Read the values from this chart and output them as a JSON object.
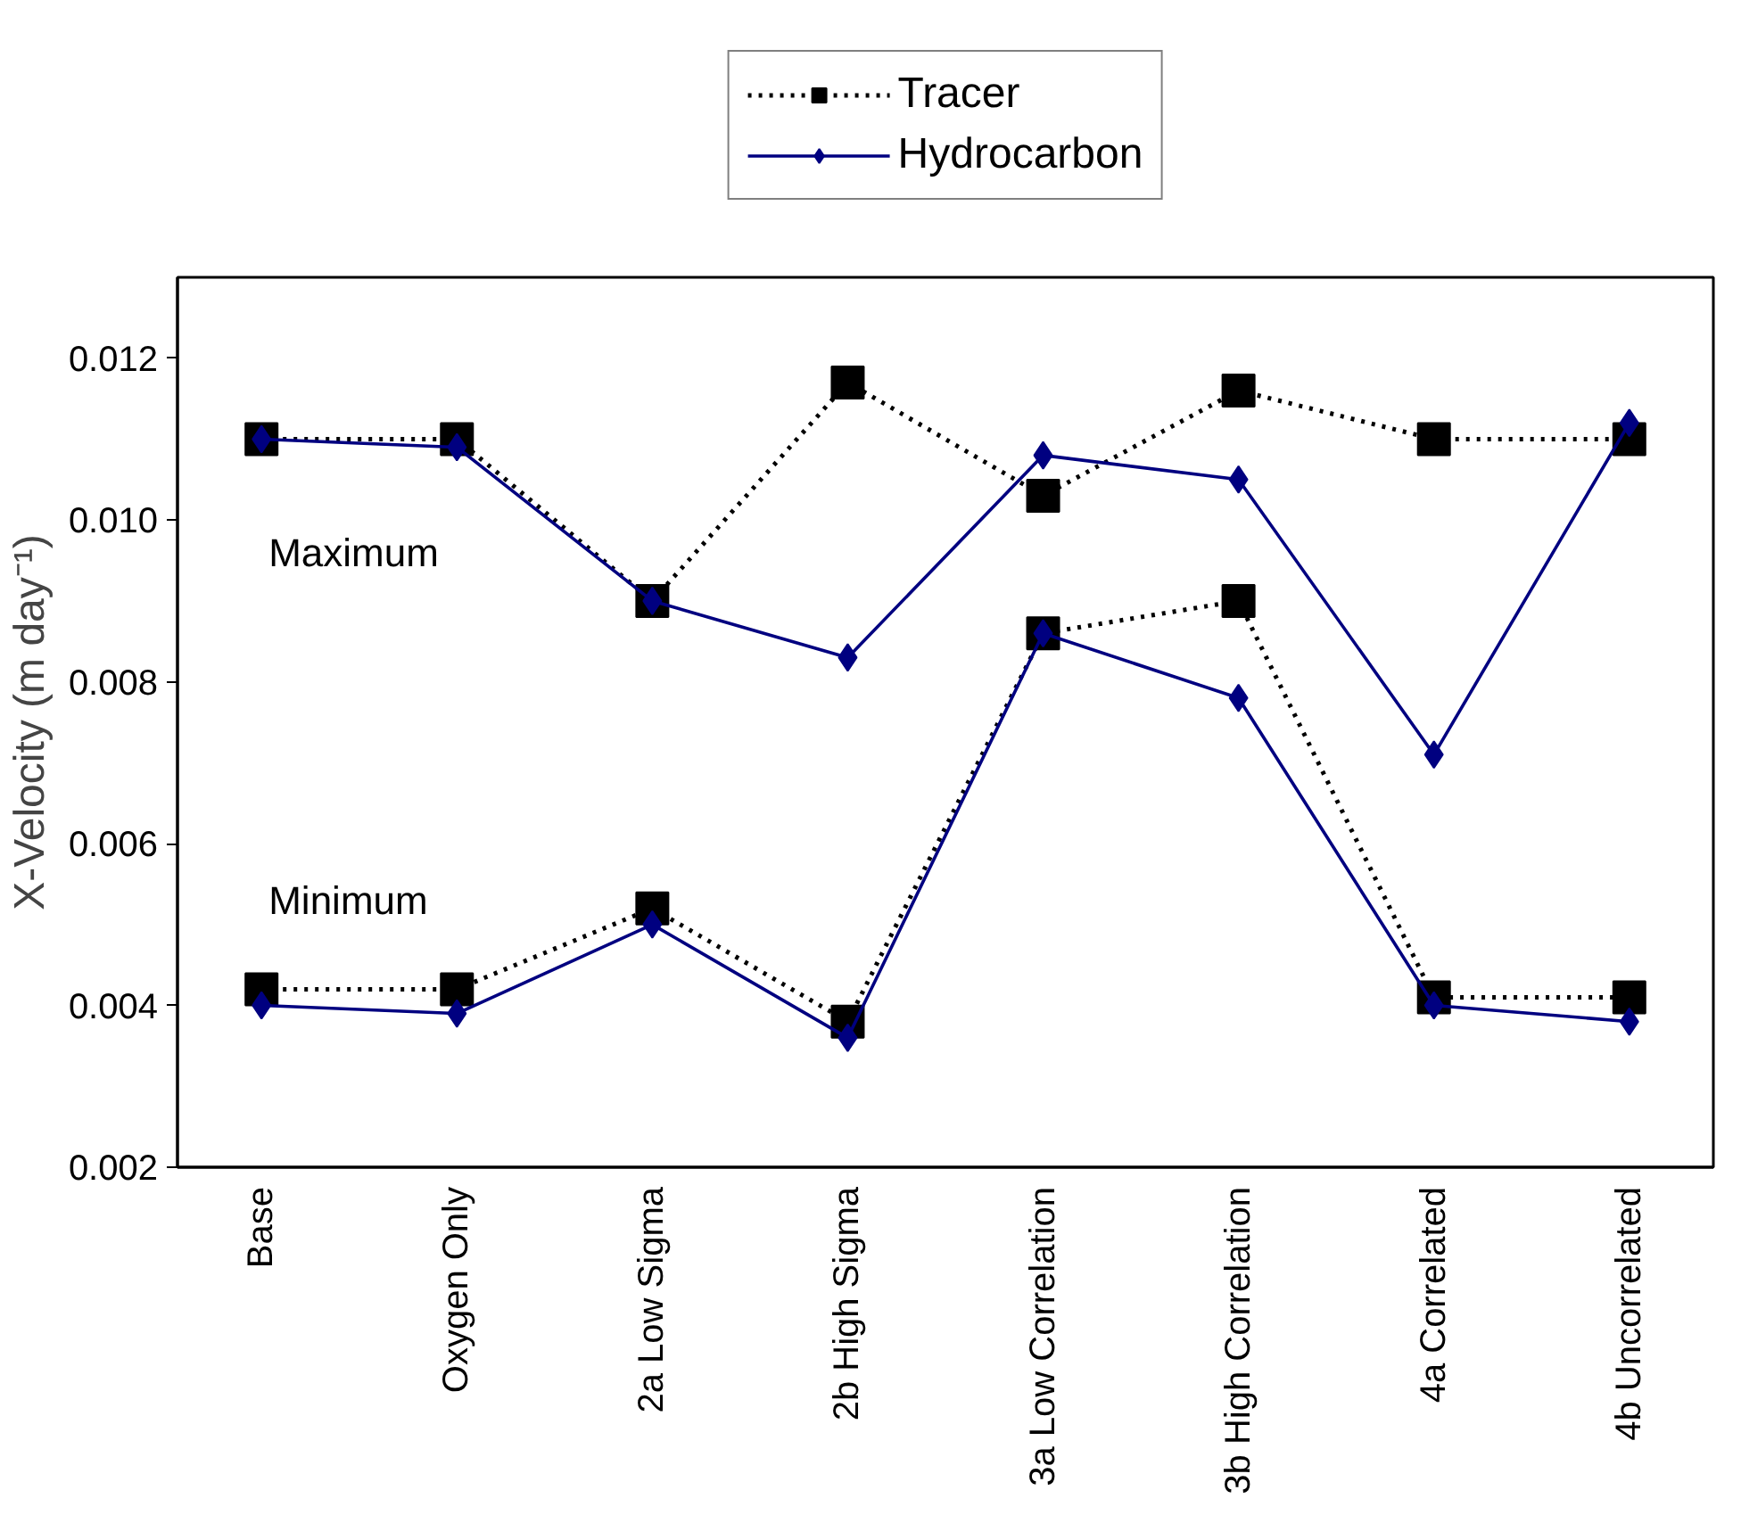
{
  "chart_data": {
    "type": "line",
    "ylabel": "X-Velocity (m day⁻¹)",
    "categories": [
      "Base",
      "Oxygen Only",
      "2a Low Sigma",
      "2b High Sigma",
      "3a Low Correlation",
      "3b High Correlation",
      "4a Correlated",
      "4b Uncorrelated"
    ],
    "series": [
      {
        "name": "Tracer",
        "color": "#000000",
        "marker": "square",
        "line_style": "dotted",
        "values": [
          0.011,
          0.011,
          0.009,
          0.0117,
          0.0103,
          0.0116,
          0.011,
          0.011
        ]
      },
      {
        "name": "Hydrocarbon",
        "color": "#000080",
        "marker": "diamond",
        "line_style": "solid",
        "values": [
          0.011,
          0.0109,
          0.009,
          0.0083,
          0.0108,
          0.0105,
          0.0071,
          0.0112
        ]
      },
      {
        "color": "#000000",
        "marker": "square",
        "line_style": "dotted",
        "values": [
          0.0042,
          0.0042,
          0.0052,
          0.0038,
          0.0086,
          0.009,
          0.0041,
          0.0041
        ]
      },
      {
        "color": "#000080",
        "marker": "diamond",
        "line_style": "solid",
        "values": [
          0.004,
          0.0039,
          0.005,
          0.0036,
          0.0086,
          0.0078,
          0.004,
          0.0038
        ]
      }
    ],
    "ylim": [
      0.002,
      0.013
    ],
    "yticks": [
      0.002,
      0.004,
      0.006,
      0.008,
      {
        "value": 0.01,
        "label": "0.010"
      },
      0.012
    ],
    "annotations": [
      "Maximum",
      "Minimum"
    ],
    "grid": false,
    "legend": "top"
  }
}
